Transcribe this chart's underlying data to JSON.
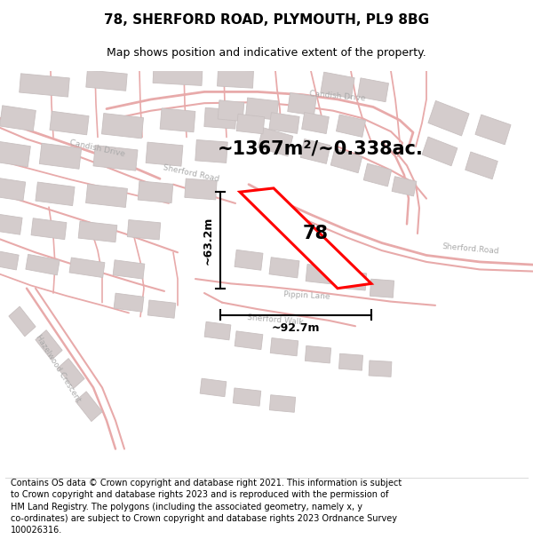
{
  "title": "78, SHERFORD ROAD, PLYMOUTH, PL9 8BG",
  "subtitle": "Map shows position and indicative extent of the property.",
  "footer": "Contains OS data © Crown copyright and database right 2021. This information is subject to Crown copyright and database rights 2023 and is reproduced with the permission of HM Land Registry. The polygons (including the associated geometry, namely x, y co-ordinates) are subject to Crown copyright and database rights 2023 Ordnance Survey 100026316.",
  "area_label": "~1367m²/~0.338ac.",
  "plot_number": "78",
  "dim_width": "~92.7m",
  "dim_height": "~63.2m",
  "bg_color": "#ffffff",
  "map_bg": "#f9f6f6",
  "road_color": "#e8aaaa",
  "building_fc": "#d4cccc",
  "building_ec": "#c8c0c0",
  "property_color": "#ff0000",
  "property_fill": "#ffffff",
  "road_label_color": "#aaaaaa",
  "title_fontsize": 11,
  "subtitle_fontsize": 9,
  "footer_fontsize": 7.0,
  "area_fontsize": 15,
  "plot_label_fontsize": 15,
  "dim_fontsize": 9,
  "road_label_fontsize": 6.5
}
